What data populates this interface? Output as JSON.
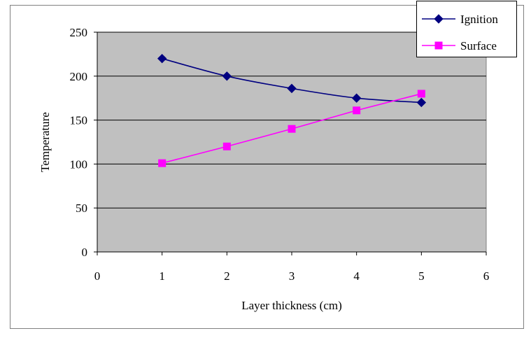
{
  "chart_data": {
    "type": "scatter",
    "title": "",
    "xlabel": "Layer thickness (cm)",
    "ylabel": "Temperature",
    "xlim": [
      0,
      6
    ],
    "ylim": [
      0,
      250
    ],
    "xticks": [
      0,
      1,
      2,
      3,
      4,
      5,
      6
    ],
    "yticks": [
      0,
      50,
      100,
      150,
      200,
      250
    ],
    "grid": "horizontal",
    "legend_position": "top-right",
    "plot_background": "#c0c0c0",
    "series": [
      {
        "name": "Ignition",
        "color": "#000080",
        "marker": "diamond",
        "line": "smooth",
        "x": [
          1,
          2,
          3,
          4,
          5
        ],
        "y": [
          220,
          200,
          186,
          175,
          170
        ]
      },
      {
        "name": "Surface",
        "color": "#ff00ff",
        "marker": "square",
        "line": "straight",
        "x": [
          1,
          2,
          3,
          4,
          5
        ],
        "y": [
          101,
          120,
          140,
          161,
          180
        ]
      }
    ]
  }
}
